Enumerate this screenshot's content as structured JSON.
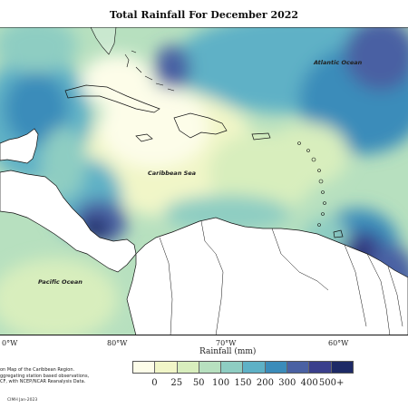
{
  "title": "Total Rainfall For December 2022",
  "map_labels": {
    "atlantic": "Atlantic Ocean",
    "caribbean": "Caribbean Sea",
    "pacific": "Pacific Ocean"
  },
  "longitudes": [
    "0°W",
    "80°W",
    "70°W",
    "60°W"
  ],
  "legend": {
    "title": "Rainfall (mm)",
    "ticks": [
      "0",
      "25",
      "50",
      "100",
      "150",
      "200",
      "300",
      "400",
      "500+"
    ],
    "colors": [
      "#fdfde9",
      "#f1f6c8",
      "#d8eebd",
      "#b7e0bf",
      "#8ecdc2",
      "#5eb1c6",
      "#3b8cba",
      "#4a61a3",
      "#3a3f8c",
      "#1d2a66"
    ]
  },
  "description": [
    "on Map of the Caribbean Region.",
    "ggregating station based observations,",
    "CF, with NCEP/NCAR Reanalysis Data."
  ],
  "credit": "CIMH Jan-2023",
  "colors": {
    "land": "#ffffff",
    "coast": "#111111"
  }
}
